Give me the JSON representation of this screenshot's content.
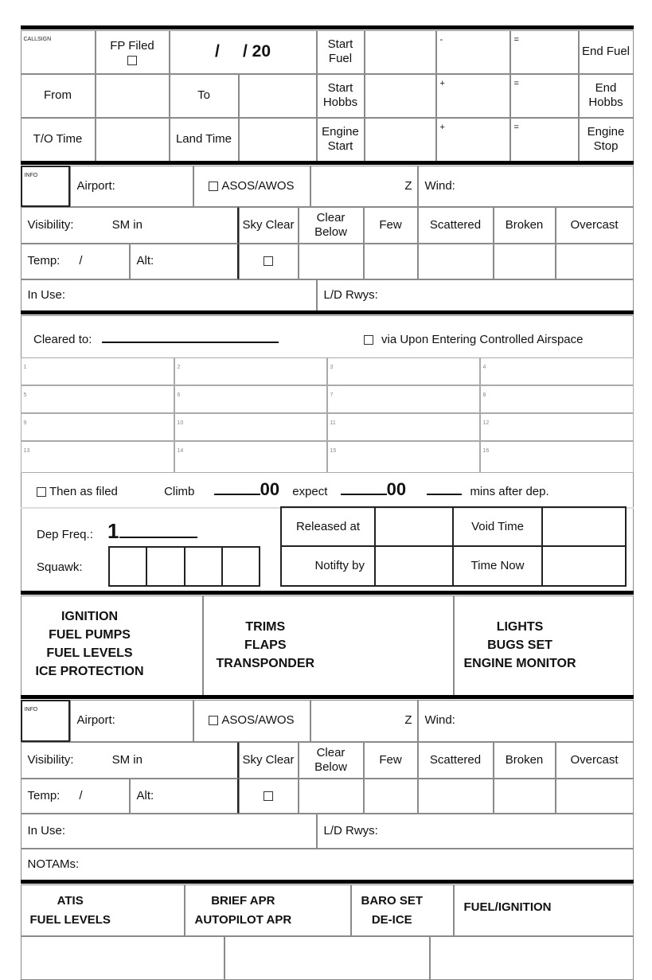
{
  "header": {
    "callsign": "CALLSIGN",
    "fp_filed": "FP Filed",
    "date": "/     / 20",
    "start_fuel": "Start Fuel",
    "end_fuel": "End Fuel",
    "minus": "-",
    "equals": "=",
    "plus": "+",
    "from": "From",
    "to": "To",
    "start_hobbs": "Start Hobbs",
    "end_hobbs": "End Hobbs",
    "to_time": "T/O Time",
    "land_time": "Land Time",
    "engine_start": "Engine Start",
    "engine_stop": "Engine Stop"
  },
  "info": {
    "info": "INFO",
    "airport": "Airport:",
    "asos": "ASOS/AWOS",
    "z": "Z",
    "wind": "Wind:",
    "visibility": "Visibility:",
    "sm_in": "SM in",
    "sky": [
      "Sky Clear",
      "Clear Below",
      "Few",
      "Scattered",
      "Broken",
      "Overcast"
    ],
    "temp": "Temp:",
    "slash": "/",
    "alt": "Alt:",
    "in_use": "In Use:",
    "ld_rwys": "L/D Rwys:",
    "notams": "NOTAMs:"
  },
  "clearance": {
    "cleared_to": "Cleared to:",
    "via": "via Upon Entering Controlled Airspace",
    "grid_numbers": [
      "1",
      "2",
      "3",
      "4",
      "5",
      "6",
      "7",
      "8",
      "9",
      "10",
      "11",
      "12",
      "13",
      "14",
      "15",
      "16"
    ],
    "then_as_filed": "Then as filed",
    "climb": "Climb",
    "zeros": "00",
    "expect": "expect",
    "mins_after": "mins after dep.",
    "dep_freq": "Dep Freq.:",
    "dep_freq_prefix": "1",
    "squawk": "Squawk:",
    "released_at": "Released at",
    "void_time": "Void Time",
    "notify_by": "Notifty by",
    "time_now": "Time Now"
  },
  "checklist1": {
    "col1": [
      "IGNITION",
      "FUEL PUMPS",
      "FUEL LEVELS",
      "ICE PROTECTION"
    ],
    "col2": [
      "TRIMS",
      "FLAPS",
      "TRANSPONDER"
    ],
    "col3": [
      "LIGHTS",
      "BUGS SET",
      "ENGINE MONITOR"
    ]
  },
  "checklist2": {
    "col1": [
      "ATIS",
      "FUEL LEVELS"
    ],
    "col2": [
      "BRIEF APR",
      "AUTOPILOT APR"
    ],
    "col3": [
      "BARO SET",
      "DE-ICE"
    ],
    "col4": [
      "FUEL/IGNITION"
    ]
  }
}
